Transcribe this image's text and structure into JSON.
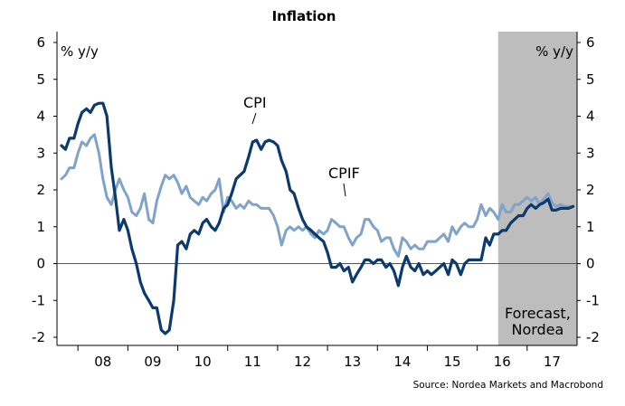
{
  "chart_data": {
    "type": "line",
    "title": "Inflation",
    "ylabel_left": "% y/y",
    "ylabel_right": "% y/y",
    "ylim": [
      -2,
      6
    ],
    "yticks": [
      -2,
      -1,
      0,
      1,
      2,
      3,
      4,
      5,
      6
    ],
    "xlim": [
      2007.58,
      2018.0
    ],
    "xtick_labels": [
      "08",
      "09",
      "10",
      "11",
      "12",
      "13",
      "14",
      "15",
      "16",
      "17"
    ],
    "xtick_values": [
      2008.5,
      2009.5,
      2010.5,
      2011.5,
      2012.5,
      2013.5,
      2014.5,
      2015.5,
      2016.5,
      2017.5
    ],
    "forecast_start": 2016.42,
    "forecast_label": [
      "Forecast,",
      "Nordea"
    ],
    "source": "Source: Nordea Markets and Macrobond",
    "annotations": {
      "cpi": "CPI",
      "cpif": "CPIF"
    },
    "grid": false,
    "series": [
      {
        "name": "CPI",
        "color": "#0b3a6e",
        "points": [
          [
            2007.67,
            3.2
          ],
          [
            2007.75,
            3.1
          ],
          [
            2007.83,
            3.4
          ],
          [
            2007.92,
            3.4
          ],
          [
            2008.0,
            3.8
          ],
          [
            2008.08,
            4.1
          ],
          [
            2008.17,
            4.2
          ],
          [
            2008.25,
            4.1
          ],
          [
            2008.33,
            4.3
          ],
          [
            2008.42,
            4.35
          ],
          [
            2008.5,
            4.35
          ],
          [
            2008.58,
            4.0
          ],
          [
            2008.67,
            2.6
          ],
          [
            2008.75,
            1.8
          ],
          [
            2008.83,
            0.9
          ],
          [
            2008.92,
            1.2
          ],
          [
            2009.0,
            0.9
          ],
          [
            2009.08,
            0.4
          ],
          [
            2009.17,
            0.0
          ],
          [
            2009.25,
            -0.5
          ],
          [
            2009.33,
            -0.8
          ],
          [
            2009.42,
            -1.0
          ],
          [
            2009.5,
            -1.2
          ],
          [
            2009.58,
            -1.2
          ],
          [
            2009.67,
            -1.8
          ],
          [
            2009.75,
            -1.9
          ],
          [
            2009.83,
            -1.8
          ],
          [
            2009.92,
            -1.0
          ],
          [
            2010.0,
            0.5
          ],
          [
            2010.08,
            0.6
          ],
          [
            2010.17,
            0.4
          ],
          [
            2010.25,
            0.8
          ],
          [
            2010.33,
            0.9
          ],
          [
            2010.42,
            0.8
          ],
          [
            2010.5,
            1.1
          ],
          [
            2010.58,
            1.2
          ],
          [
            2010.67,
            1.0
          ],
          [
            2010.75,
            0.9
          ],
          [
            2010.83,
            1.1
          ],
          [
            2010.92,
            1.5
          ],
          [
            2011.0,
            1.6
          ],
          [
            2011.08,
            1.9
          ],
          [
            2011.17,
            2.3
          ],
          [
            2011.25,
            2.4
          ],
          [
            2011.33,
            2.5
          ],
          [
            2011.42,
            2.9
          ],
          [
            2011.5,
            3.3
          ],
          [
            2011.58,
            3.35
          ],
          [
            2011.67,
            3.1
          ],
          [
            2011.75,
            3.3
          ],
          [
            2011.83,
            3.35
          ],
          [
            2011.92,
            3.3
          ],
          [
            2012.0,
            3.2
          ],
          [
            2012.08,
            2.8
          ],
          [
            2012.17,
            2.5
          ],
          [
            2012.25,
            2.0
          ],
          [
            2012.33,
            1.9
          ],
          [
            2012.42,
            1.5
          ],
          [
            2012.5,
            1.2
          ],
          [
            2012.58,
            1.0
          ],
          [
            2012.67,
            0.9
          ],
          [
            2012.75,
            0.8
          ],
          [
            2012.83,
            0.7
          ],
          [
            2012.92,
            0.6
          ],
          [
            2013.0,
            0.3
          ],
          [
            2013.08,
            -0.1
          ],
          [
            2013.17,
            -0.1
          ],
          [
            2013.25,
            0.0
          ],
          [
            2013.33,
            -0.2
          ],
          [
            2013.42,
            -0.1
          ],
          [
            2013.5,
            -0.5
          ],
          [
            2013.58,
            -0.3
          ],
          [
            2013.67,
            -0.1
          ],
          [
            2013.75,
            0.1
          ],
          [
            2013.83,
            0.1
          ],
          [
            2013.92,
            0.0
          ],
          [
            2014.0,
            0.1
          ],
          [
            2014.08,
            0.1
          ],
          [
            2014.17,
            -0.1
          ],
          [
            2014.25,
            0.0
          ],
          [
            2014.33,
            -0.2
          ],
          [
            2014.42,
            -0.6
          ],
          [
            2014.5,
            -0.1
          ],
          [
            2014.58,
            0.2
          ],
          [
            2014.67,
            -0.1
          ],
          [
            2014.75,
            -0.2
          ],
          [
            2014.83,
            0.0
          ],
          [
            2014.92,
            -0.3
          ],
          [
            2015.0,
            -0.2
          ],
          [
            2015.08,
            -0.3
          ],
          [
            2015.17,
            -0.2
          ],
          [
            2015.25,
            -0.1
          ],
          [
            2015.33,
            0.0
          ],
          [
            2015.42,
            -0.3
          ],
          [
            2015.5,
            0.1
          ],
          [
            2015.58,
            0.0
          ],
          [
            2015.67,
            -0.3
          ],
          [
            2015.75,
            0.0
          ],
          [
            2015.83,
            0.1
          ],
          [
            2015.92,
            0.1
          ],
          [
            2016.0,
            0.1
          ],
          [
            2016.08,
            0.1
          ],
          [
            2016.17,
            0.7
          ],
          [
            2016.25,
            0.5
          ],
          [
            2016.33,
            0.8
          ],
          [
            2016.42,
            0.8
          ],
          [
            2016.5,
            0.9
          ],
          [
            2016.58,
            0.9
          ],
          [
            2016.67,
            1.1
          ],
          [
            2016.75,
            1.2
          ],
          [
            2016.83,
            1.3
          ],
          [
            2016.92,
            1.3
          ],
          [
            2017.0,
            1.5
          ],
          [
            2017.08,
            1.6
          ],
          [
            2017.17,
            1.5
          ],
          [
            2017.25,
            1.6
          ],
          [
            2017.33,
            1.65
          ],
          [
            2017.42,
            1.75
          ],
          [
            2017.5,
            1.45
          ],
          [
            2017.58,
            1.45
          ],
          [
            2017.67,
            1.5
          ],
          [
            2017.75,
            1.5
          ],
          [
            2017.83,
            1.5
          ],
          [
            2017.92,
            1.55
          ]
        ]
      },
      {
        "name": "CPIF",
        "color": "#7fa3c9",
        "points": [
          [
            2007.67,
            2.3
          ],
          [
            2007.75,
            2.4
          ],
          [
            2007.83,
            2.6
          ],
          [
            2007.92,
            2.6
          ],
          [
            2008.0,
            3.0
          ],
          [
            2008.08,
            3.3
          ],
          [
            2008.17,
            3.2
          ],
          [
            2008.25,
            3.4
          ],
          [
            2008.33,
            3.5
          ],
          [
            2008.42,
            3.0
          ],
          [
            2008.5,
            2.3
          ],
          [
            2008.58,
            1.8
          ],
          [
            2008.67,
            1.6
          ],
          [
            2008.75,
            2.0
          ],
          [
            2008.83,
            2.3
          ],
          [
            2008.92,
            2.0
          ],
          [
            2009.0,
            1.8
          ],
          [
            2009.08,
            1.4
          ],
          [
            2009.17,
            1.3
          ],
          [
            2009.25,
            1.5
          ],
          [
            2009.33,
            1.9
          ],
          [
            2009.42,
            1.2
          ],
          [
            2009.5,
            1.1
          ],
          [
            2009.58,
            1.7
          ],
          [
            2009.67,
            2.1
          ],
          [
            2009.75,
            2.4
          ],
          [
            2009.83,
            2.3
          ],
          [
            2009.92,
            2.4
          ],
          [
            2010.0,
            2.2
          ],
          [
            2010.08,
            1.9
          ],
          [
            2010.17,
            2.1
          ],
          [
            2010.25,
            1.8
          ],
          [
            2010.33,
            1.7
          ],
          [
            2010.42,
            1.6
          ],
          [
            2010.5,
            1.8
          ],
          [
            2010.58,
            1.7
          ],
          [
            2010.67,
            1.9
          ],
          [
            2010.75,
            2.0
          ],
          [
            2010.83,
            2.3
          ],
          [
            2010.92,
            1.4
          ],
          [
            2011.0,
            1.8
          ],
          [
            2011.08,
            1.7
          ],
          [
            2011.17,
            1.5
          ],
          [
            2011.25,
            1.6
          ],
          [
            2011.33,
            1.5
          ],
          [
            2011.42,
            1.7
          ],
          [
            2011.5,
            1.6
          ],
          [
            2011.58,
            1.6
          ],
          [
            2011.67,
            1.5
          ],
          [
            2011.75,
            1.5
          ],
          [
            2011.83,
            1.5
          ],
          [
            2011.92,
            1.3
          ],
          [
            2012.0,
            1.0
          ],
          [
            2012.08,
            0.5
          ],
          [
            2012.17,
            0.9
          ],
          [
            2012.25,
            1.0
          ],
          [
            2012.33,
            0.9
          ],
          [
            2012.42,
            1.0
          ],
          [
            2012.5,
            0.9
          ],
          [
            2012.58,
            1.0
          ],
          [
            2012.67,
            0.8
          ],
          [
            2012.75,
            0.7
          ],
          [
            2012.83,
            0.9
          ],
          [
            2012.92,
            0.8
          ],
          [
            2013.0,
            0.9
          ],
          [
            2013.08,
            1.2
          ],
          [
            2013.17,
            1.1
          ],
          [
            2013.25,
            1.0
          ],
          [
            2013.33,
            1.0
          ],
          [
            2013.42,
            0.7
          ],
          [
            2013.5,
            0.5
          ],
          [
            2013.58,
            0.7
          ],
          [
            2013.67,
            0.8
          ],
          [
            2013.75,
            1.2
          ],
          [
            2013.83,
            1.2
          ],
          [
            2013.92,
            1.0
          ],
          [
            2014.0,
            0.9
          ],
          [
            2014.08,
            0.6
          ],
          [
            2014.17,
            0.7
          ],
          [
            2014.25,
            0.7
          ],
          [
            2014.33,
            0.4
          ],
          [
            2014.42,
            0.2
          ],
          [
            2014.5,
            0.7
          ],
          [
            2014.58,
            0.6
          ],
          [
            2014.67,
            0.4
          ],
          [
            2014.75,
            0.5
          ],
          [
            2014.83,
            0.4
          ],
          [
            2014.92,
            0.4
          ],
          [
            2015.0,
            0.6
          ],
          [
            2015.08,
            0.6
          ],
          [
            2015.17,
            0.6
          ],
          [
            2015.25,
            0.7
          ],
          [
            2015.33,
            0.8
          ],
          [
            2015.42,
            0.6
          ],
          [
            2015.5,
            1.0
          ],
          [
            2015.58,
            0.8
          ],
          [
            2015.67,
            1.0
          ],
          [
            2015.75,
            1.1
          ],
          [
            2015.83,
            1.0
          ],
          [
            2015.92,
            1.0
          ],
          [
            2016.0,
            1.2
          ],
          [
            2016.08,
            1.6
          ],
          [
            2016.17,
            1.3
          ],
          [
            2016.25,
            1.5
          ],
          [
            2016.33,
            1.4
          ],
          [
            2016.42,
            1.2
          ],
          [
            2016.5,
            1.6
          ],
          [
            2016.58,
            1.4
          ],
          [
            2016.67,
            1.4
          ],
          [
            2016.75,
            1.6
          ],
          [
            2016.83,
            1.6
          ],
          [
            2016.92,
            1.7
          ],
          [
            2017.0,
            1.8
          ],
          [
            2017.08,
            1.7
          ],
          [
            2017.17,
            1.8
          ],
          [
            2017.25,
            1.6
          ],
          [
            2017.33,
            1.75
          ],
          [
            2017.42,
            1.9
          ],
          [
            2017.5,
            1.65
          ],
          [
            2017.58,
            1.55
          ],
          [
            2017.67,
            1.6
          ],
          [
            2017.75,
            1.55
          ],
          [
            2017.83,
            1.55
          ],
          [
            2017.92,
            1.55
          ]
        ]
      }
    ]
  }
}
